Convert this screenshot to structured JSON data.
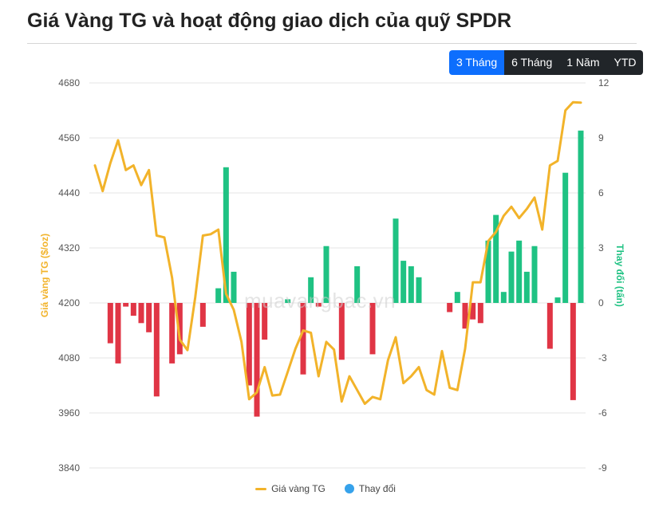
{
  "title": "Giá Vàng TG và hoạt động giao dịch của quỹ SPDR",
  "tabs": [
    {
      "label": "3 Tháng",
      "active": true
    },
    {
      "label": "6 Tháng",
      "active": false
    },
    {
      "label": "1 Năm",
      "active": false
    },
    {
      "label": "YTD",
      "active": false
    }
  ],
  "watermark": "muavangbac.vn",
  "legend": {
    "price_label": "Giá vàng TG",
    "change_label": "Thay đổi"
  },
  "colors": {
    "price_line": "#f2b32a",
    "bar_positive": "#1fc283",
    "bar_negative": "#e03545",
    "legend_change": "#36a2eb",
    "left_axis_label": "#f2b32a",
    "right_axis_label": "#1fc283"
  },
  "chart_data": {
    "type": "bar+line",
    "y_left": {
      "label": "Giá vàng TG ($/oz)",
      "min": 3840,
      "max": 4680,
      "ticks": [
        3840,
        3960,
        4080,
        4200,
        4320,
        4440,
        4560,
        4680
      ]
    },
    "y_right": {
      "label": "Thay đổi (tấn)",
      "min": -9,
      "max": 12,
      "ticks": [
        -9,
        -6,
        -3,
        0,
        3,
        6,
        9,
        12
      ]
    },
    "grid": true,
    "legend_position": "bottom",
    "series": [
      {
        "name": "Giá vàng TG",
        "type": "line",
        "axis": "left",
        "values": [
          4500,
          4444,
          4505,
          4555,
          4490,
          4500,
          4457,
          4490,
          4347,
          4343,
          4255,
          4120,
          4097,
          4212,
          4347,
          4350,
          4360,
          4220,
          4185,
          4115,
          3990,
          4005,
          4060,
          3998,
          4000,
          4050,
          4100,
          4140,
          4135,
          4040,
          4115,
          4098,
          3985,
          4040,
          4010,
          3980,
          3995,
          3990,
          4075,
          4125,
          4025,
          4040,
          4060,
          4010,
          4000,
          4095,
          4015,
          4010,
          4100,
          4245,
          4245,
          4335,
          4355,
          4390,
          4410,
          4385,
          4405,
          4430,
          4360,
          4500,
          4510,
          4620,
          4638,
          4637
        ]
      },
      {
        "name": "Thay đổi",
        "type": "bar",
        "axis": "right",
        "values": [
          0,
          0,
          -2.2,
          -3.3,
          -0.2,
          -0.7,
          -1.1,
          -1.6,
          -5.1,
          0,
          -3.3,
          -2.8,
          0,
          0,
          -1.3,
          0,
          0.8,
          7.4,
          1.7,
          0,
          -4.5,
          -6.2,
          -2.0,
          0,
          0,
          0.2,
          0,
          -3.9,
          1.4,
          -0.2,
          3.1,
          0,
          -3.1,
          0,
          2.0,
          0,
          -2.8,
          0,
          0,
          4.6,
          2.3,
          2.0,
          1.4,
          0,
          0,
          0,
          -0.5,
          0.6,
          -1.4,
          -0.9,
          -1.1,
          3.4,
          4.8,
          0.6,
          2.8,
          3.4,
          1.7,
          3.1,
          0,
          -2.5,
          0.3,
          7.1,
          -5.3,
          9.4
        ]
      }
    ]
  }
}
